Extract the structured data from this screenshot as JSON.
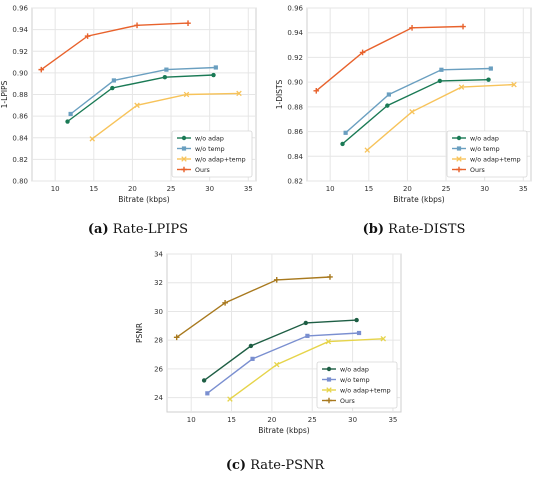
{
  "chart_data": [
    {
      "type": "line",
      "xlabel": "Bitrate (kbps)",
      "ylabel": "1-LPIPS",
      "xlim": [
        7,
        36
      ],
      "ylim": [
        0.8,
        0.96
      ],
      "xticks": [
        "10",
        "15",
        "20",
        "25",
        "30",
        "35"
      ],
      "yticks": [
        "0.80",
        "0.82",
        "0.84",
        "0.86",
        "0.88",
        "0.90",
        "0.92",
        "0.94",
        "0.96"
      ],
      "grid": true,
      "legend_position": "lower-right",
      "series": [
        {
          "name": "w/o adap",
          "color": "#1a7a55",
          "marker": "circle",
          "x": [
            11.6,
            17.4,
            24.2,
            30.5
          ],
          "y": [
            0.855,
            0.886,
            0.896,
            0.898
          ]
        },
        {
          "name": "w/o temp",
          "color": "#6a9fc0",
          "marker": "square",
          "x": [
            12.0,
            17.6,
            24.4,
            30.8
          ],
          "y": [
            0.862,
            0.893,
            0.903,
            0.905
          ]
        },
        {
          "name": "w/o adap+temp",
          "color": "#f7c35a",
          "marker": "x",
          "x": [
            14.8,
            20.6,
            27.0,
            33.8
          ],
          "y": [
            0.839,
            0.87,
            0.88,
            0.881
          ]
        },
        {
          "name": "Ours",
          "color": "#e8622c",
          "marker": "plus",
          "x": [
            8.2,
            14.2,
            20.6,
            27.2
          ],
          "y": [
            0.903,
            0.934,
            0.944,
            0.946
          ]
        }
      ]
    },
    {
      "type": "line",
      "xlabel": "Bitrate (kbps)",
      "ylabel": "1-DISTS",
      "xlim": [
        7,
        36
      ],
      "ylim": [
        0.82,
        0.96
      ],
      "xticks": [
        "10",
        "15",
        "20",
        "25",
        "30",
        "35"
      ],
      "yticks": [
        "0.82",
        "0.84",
        "0.86",
        "0.88",
        "0.90",
        "0.92",
        "0.94",
        "0.96"
      ],
      "grid": true,
      "legend_position": "lower-right",
      "series": [
        {
          "name": "w/o adap",
          "color": "#1a7a55",
          "marker": "circle",
          "x": [
            11.6,
            17.4,
            24.2,
            30.5
          ],
          "y": [
            0.85,
            0.881,
            0.901,
            0.902
          ]
        },
        {
          "name": "w/o temp",
          "color": "#6a9fc0",
          "marker": "square",
          "x": [
            12.0,
            17.6,
            24.4,
            30.8
          ],
          "y": [
            0.859,
            0.89,
            0.91,
            0.911
          ]
        },
        {
          "name": "w/o adap+temp",
          "color": "#f7c35a",
          "marker": "x",
          "x": [
            14.8,
            20.6,
            27.0,
            33.8
          ],
          "y": [
            0.845,
            0.876,
            0.896,
            0.898
          ]
        },
        {
          "name": "Ours",
          "color": "#e8622c",
          "marker": "plus",
          "x": [
            8.2,
            14.2,
            20.6,
            27.2
          ],
          "y": [
            0.893,
            0.924,
            0.944,
            0.945
          ]
        }
      ]
    },
    {
      "type": "line",
      "xlabel": "Bitrate (kbps)",
      "ylabel": "PSNR",
      "xlim": [
        7,
        36
      ],
      "ylim": [
        23,
        34
      ],
      "xticks": [
        "10",
        "15",
        "20",
        "25",
        "30",
        "35"
      ],
      "yticks": [
        "24",
        "26",
        "28",
        "30",
        "32",
        "34"
      ],
      "grid": true,
      "legend_position": "lower-right",
      "series": [
        {
          "name": "w/o adap",
          "color": "#1e5e44",
          "marker": "circle",
          "x": [
            11.6,
            17.4,
            24.2,
            30.5
          ],
          "y": [
            25.2,
            27.6,
            29.2,
            29.4
          ]
        },
        {
          "name": "w/o temp",
          "color": "#7a8fd0",
          "marker": "square",
          "x": [
            12.0,
            17.6,
            24.4,
            30.8
          ],
          "y": [
            24.3,
            26.7,
            28.3,
            28.5
          ]
        },
        {
          "name": "w/o adap+temp",
          "color": "#e6d44a",
          "marker": "x",
          "x": [
            14.8,
            20.6,
            27.0,
            33.8
          ],
          "y": [
            23.9,
            26.3,
            27.9,
            28.1
          ]
        },
        {
          "name": "Ours",
          "color": "#a8791e",
          "marker": "plus",
          "x": [
            8.2,
            14.2,
            20.6,
            27.2
          ],
          "y": [
            28.2,
            30.6,
            32.2,
            32.4
          ]
        }
      ]
    }
  ],
  "captions": [
    {
      "label": "(a)",
      "text": "Rate-LPIPS"
    },
    {
      "label": "(b)",
      "text": "Rate-DISTS"
    },
    {
      "label": "(c)",
      "text": "Rate-PSNR"
    }
  ]
}
